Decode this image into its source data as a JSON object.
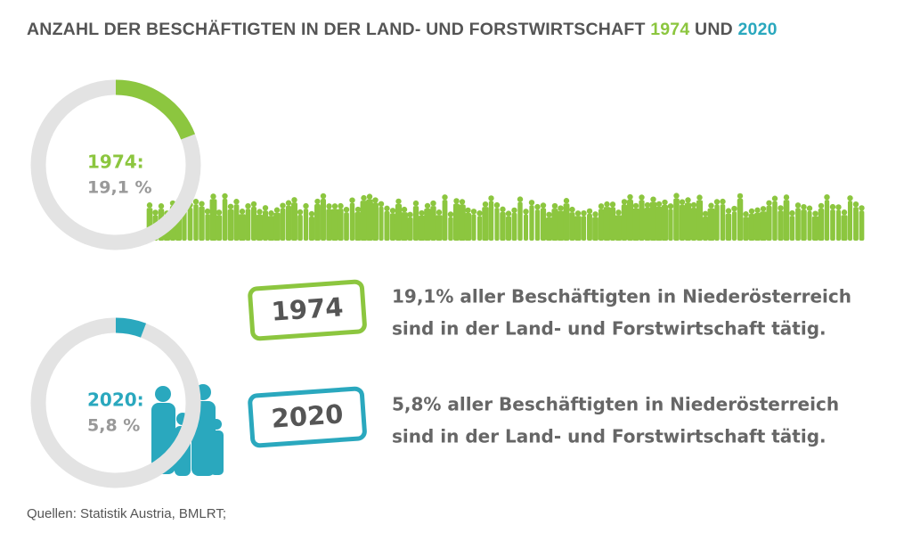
{
  "header": {
    "title": "ANZAHL DER BESCHÄFTIGTEN IN DER LAND- UND FORSTWIRTSCHAFT",
    "year1": "1974",
    "conj": "UND",
    "year2": "2020"
  },
  "chart_data": [
    {
      "type": "donut",
      "title": "1974:",
      "values": [
        19.1
      ],
      "value_labels": [
        "19,1 %"
      ],
      "color": "#8cc63f"
    },
    {
      "type": "donut",
      "title": "2020:",
      "values": [
        5.8
      ],
      "value_labels": [
        "5,8 %"
      ],
      "color": "#2aa8be"
    }
  ],
  "statements": [
    {
      "badge": "1974",
      "lines": [
        "19,1% aller Beschäftigten in Niederösterreich",
        "sind in der Land- und Forstwirtschaft tätig."
      ]
    },
    {
      "badge": "2020",
      "lines": [
        "5,8% aller Beschäftigten in Niederösterreich",
        "sind in der Land- und Forstwirtschaft tätig."
      ]
    }
  ],
  "source": "Quellen: Statistik Austria, BMLRT;"
}
